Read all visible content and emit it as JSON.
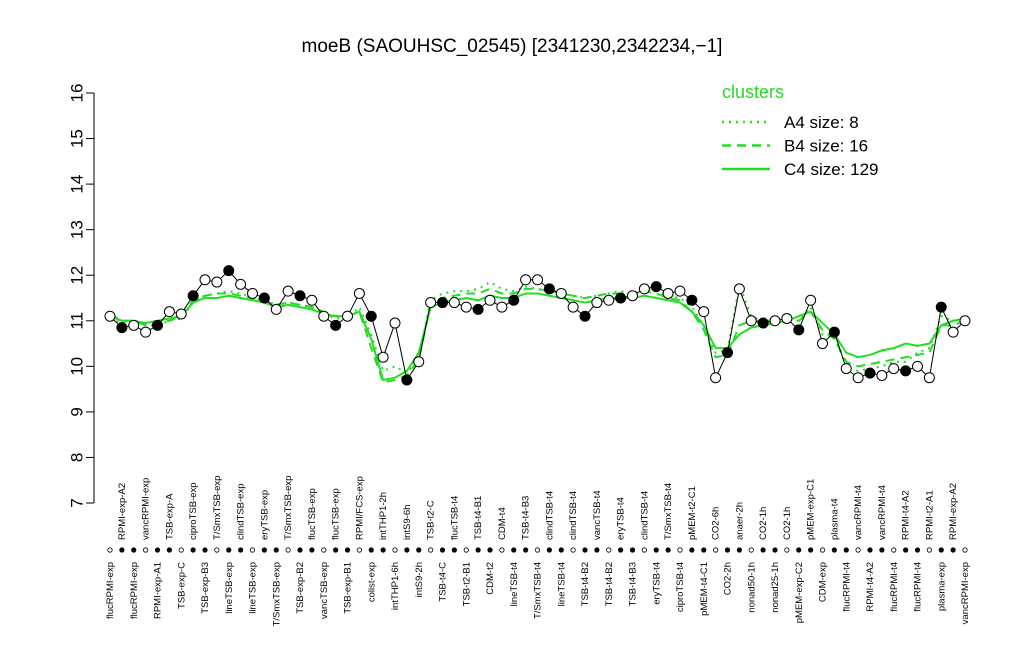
{
  "chart_data": {
    "type": "line",
    "title": "moeB (SAOUHSC_02545) [2341230,2342234,−1]",
    "categories": [
      "flucRPMI-exp",
      "RPMI-exp-A2",
      "flucRPMI-exp",
      "vancRPMI-exp",
      "RPMI-exp-A1",
      "TSB-exp-A",
      "TSB-exp-C",
      "ciproTSB-exp",
      "TSB-exp-B3",
      "T/SmxTSB-exp",
      "lineTSB-exp",
      "clindTSB-exp",
      "lineTSB-exp",
      "eryTSB-exp",
      "T/SmxTSB-exp",
      "T/SmxTSB-exp",
      "TSB-exp-B2",
      "flucTSB-exp",
      "vancTSB-exp",
      "flucTSB-exp",
      "TSB-exp-B1",
      "RPMI/FCS-exp",
      "colist-exp",
      "intTHP1-2h",
      "intTHP1-6h",
      "intS9-6h",
      "intS9-2h",
      "TSB-t2-C",
      "TSB-t4-C",
      "flucTSB-t4",
      "TSB-t2-B1",
      "TSB-t4-B1",
      "CDM-t2",
      "CDM-t4",
      "lineTSB-t4",
      "TSB-t4-B3",
      "T/SmxTSB-t4",
      "clindTSB-t4",
      "lineTSB-t4",
      "clindTSB-t4",
      "TSB-t4-B2",
      "vancTSB-t4",
      "TSB-t4-B2",
      "eryTSB-t4",
      "TSB-t4-B3",
      "clindTSB-t4",
      "eryTSB-t4",
      "T/SmxTSB-t4",
      "ciproTSB-t4",
      "pMEM-t2-C1",
      "pMEM-t4-C1",
      "CO2-6h",
      "CO2-2h",
      "anaer-2h",
      "nonad50-1h",
      "CO2-1h",
      "nonad25-1h",
      "CO2-1h",
      "pMEM-exp-C2",
      "pMEM-exp-C1",
      "CDM-exp",
      "plasma-t4",
      "flucRPMI-t4",
      "vancRPMI-t4",
      "RPMI-t4-A2",
      "vancRPMI-t4",
      "flucRPMI-t4",
      "RPMI-t4-A2",
      "flucRPMI-t4",
      "RPMI-t2-A1",
      "plasma-exp",
      "RPMI-exp-A2",
      "vancRPMI-exp"
    ],
    "values": [
      11.1,
      10.85,
      10.9,
      10.75,
      10.9,
      11.2,
      11.15,
      11.55,
      11.9,
      11.85,
      12.1,
      11.8,
      11.6,
      11.5,
      11.25,
      11.65,
      11.55,
      11.45,
      11.1,
      10.9,
      11.1,
      11.6,
      11.1,
      10.2,
      10.95,
      9.7,
      10.1,
      11.4,
      11.4,
      11.4,
      11.3,
      11.25,
      11.45,
      11.3,
      11.45,
      11.9,
      11.9,
      11.7,
      11.6,
      11.3,
      11.1,
      11.4,
      11.45,
      11.5,
      11.55,
      11.7,
      11.75,
      11.6,
      11.65,
      11.45,
      11.2,
      9.75,
      10.3,
      11.7,
      11.0,
      10.95,
      11.0,
      11.05,
      10.8,
      11.45,
      10.5,
      10.75,
      9.95,
      9.75,
      9.85,
      9.8,
      9.95,
      9.9,
      10.0,
      9.75,
      11.3,
      10.75,
      11.0
    ],
    "color": "#000000",
    "series": [
      {
        "name": "A4 size: 8",
        "color": "#22dd22",
        "dash": "dotted",
        "values": [
          11.05,
          10.95,
          10.95,
          10.9,
          10.9,
          11.0,
          11.05,
          11.4,
          11.55,
          11.6,
          11.65,
          11.6,
          11.5,
          11.45,
          11.35,
          11.4,
          11.35,
          11.3,
          11.15,
          11.05,
          11.05,
          11.3,
          10.7,
          9.9,
          10.0,
          9.85,
          10.2,
          11.45,
          11.6,
          11.65,
          11.65,
          11.7,
          11.85,
          11.7,
          11.65,
          11.75,
          11.7,
          11.65,
          11.6,
          11.55,
          11.5,
          11.55,
          11.6,
          11.65,
          11.6,
          11.7,
          11.65,
          11.55,
          11.5,
          11.3,
          10.9,
          10.3,
          10.35,
          11.8,
          11.1,
          11.0,
          11.0,
          11.05,
          11.0,
          11.3,
          10.7,
          10.65,
          10.0,
          9.9,
          9.95,
          10.0,
          10.1,
          10.1,
          10.3,
          10.4,
          11.1,
          11.0,
          11.0
        ]
      },
      {
        "name": "B4 size: 16",
        "color": "#22dd22",
        "dash": "dashed",
        "values": [
          11.15,
          11.0,
          11.0,
          10.9,
          10.95,
          11.0,
          11.1,
          11.45,
          11.55,
          11.6,
          11.6,
          11.55,
          11.5,
          11.45,
          11.35,
          11.4,
          11.35,
          11.3,
          11.2,
          11.1,
          11.1,
          11.2,
          10.4,
          9.65,
          9.7,
          9.8,
          10.15,
          11.35,
          11.5,
          11.55,
          11.6,
          11.6,
          11.7,
          11.6,
          11.6,
          11.7,
          11.7,
          11.65,
          11.6,
          11.55,
          11.5,
          11.55,
          11.6,
          11.6,
          11.6,
          11.65,
          11.6,
          11.5,
          11.45,
          11.2,
          10.8,
          10.2,
          10.25,
          10.9,
          11.0,
          11.0,
          11.0,
          11.05,
          11.0,
          11.2,
          10.8,
          10.6,
          10.1,
          10.0,
          10.05,
          10.1,
          10.15,
          10.2,
          10.25,
          10.3,
          10.9,
          10.9,
          11.0
        ]
      },
      {
        "name": "C4 size: 129",
        "color": "#22dd22",
        "dash": "solid",
        "values": [
          11.1,
          11.0,
          11.0,
          10.95,
          11.0,
          11.05,
          11.1,
          11.4,
          11.5,
          11.5,
          11.55,
          11.5,
          11.45,
          11.4,
          11.3,
          11.35,
          11.3,
          11.25,
          11.15,
          11.1,
          11.1,
          11.2,
          10.6,
          9.7,
          9.75,
          9.9,
          10.3,
          11.3,
          11.4,
          11.45,
          11.5,
          11.45,
          11.55,
          11.5,
          11.5,
          11.6,
          11.6,
          11.55,
          11.5,
          11.45,
          11.4,
          11.45,
          11.5,
          11.5,
          11.5,
          11.55,
          11.5,
          11.45,
          11.4,
          11.2,
          10.9,
          10.4,
          10.4,
          10.7,
          10.85,
          10.9,
          10.95,
          11.0,
          11.1,
          11.2,
          10.95,
          10.7,
          10.3,
          10.2,
          10.25,
          10.35,
          10.4,
          10.5,
          10.45,
          10.5,
          10.9,
          11.0,
          11.05
        ]
      }
    ],
    "legend_title": "clusters",
    "ylim": [
      7,
      16
    ],
    "yticks": [
      7,
      8,
      9,
      10,
      11,
      12,
      13,
      14,
      15,
      16
    ]
  }
}
